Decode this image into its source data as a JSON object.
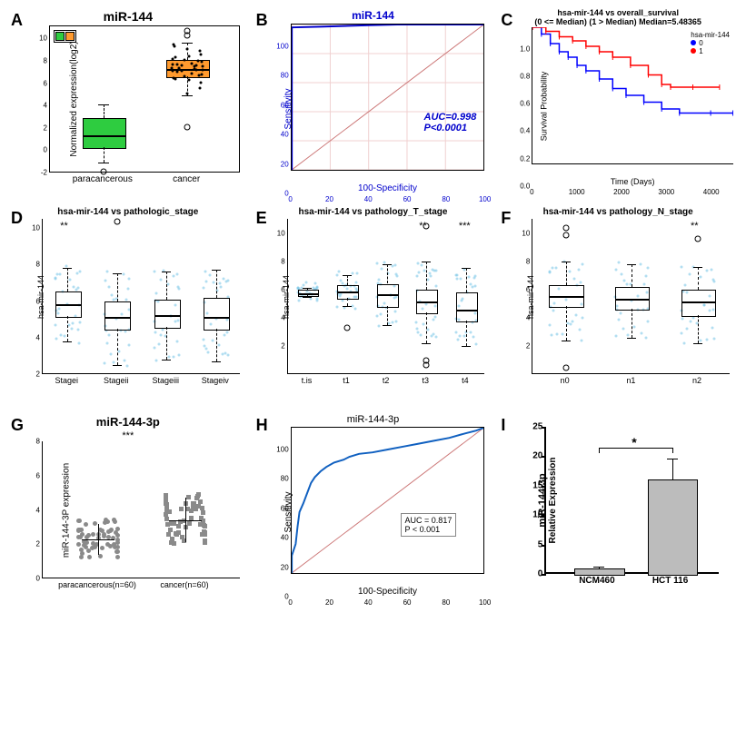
{
  "panelA": {
    "label": "A",
    "title": "miR-144",
    "ylabel": "Normalized expression(log2)",
    "ylim": [
      -2,
      11
    ],
    "yticks": [
      -2,
      0,
      2,
      4,
      6,
      8,
      10
    ],
    "categories": [
      "paracancerous",
      "cancer"
    ],
    "boxes": [
      {
        "q1": 0.2,
        "median": 1.3,
        "q3": 2.8,
        "wlo": -1.2,
        "whi": 4.0,
        "color": "#2ecc40"
      },
      {
        "q1": 6.5,
        "median": 7.3,
        "q3": 8.0,
        "wlo": 4.8,
        "whi": 9.5,
        "color": "#ff9a2e"
      }
    ],
    "legend_colors": [
      "#2ecc40",
      "#ff9a2e"
    ],
    "outliers": [
      {
        "cat": 0,
        "y": -2.0
      },
      {
        "cat": 1,
        "y": 10.6
      },
      {
        "cat": 1,
        "y": 10.2
      },
      {
        "cat": 1,
        "y": 2.0
      }
    ],
    "jitter_cancer": [
      5.0,
      5.5,
      6.0,
      6.2,
      6.3,
      6.4,
      6.5,
      6.6,
      6.7,
      6.8,
      6.9,
      7.0,
      7.0,
      7.1,
      7.1,
      7.2,
      7.2,
      7.3,
      7.3,
      7.4,
      7.4,
      7.5,
      7.5,
      7.6,
      7.6,
      7.7,
      7.8,
      7.9,
      8.0,
      8.1,
      8.2,
      8.3,
      8.5,
      8.8,
      9.0,
      9.2,
      9.4
    ]
  },
  "panelB": {
    "label": "B",
    "title": "miR-144",
    "title_color": "#0000cc",
    "xlabel": "100-Specificity",
    "ylabel": "Sensitivity",
    "xlim": [
      0,
      100
    ],
    "ylim": [
      0,
      100
    ],
    "ticks": [
      0,
      20,
      40,
      60,
      80,
      100
    ],
    "auc_text": "AUC=0.998",
    "p_text": "P<0.0001",
    "label_color": "#0000cc",
    "grid_color": "#f0d0d0",
    "roc_color": "#0000cc",
    "diag_color": "#cc7777",
    "roc_path": [
      [
        0,
        0
      ],
      [
        0,
        98
      ],
      [
        15,
        98.5
      ],
      [
        40,
        99.5
      ],
      [
        55,
        100
      ],
      [
        100,
        100
      ]
    ]
  },
  "panelC": {
    "label": "C",
    "title_line1": "hsa-mir-144 vs overall_survival",
    "title_line2": "(0 <= Median) (1 > Median) Median=5.48365",
    "xlabel": "Time (Days)",
    "ylabel": "Survival Probability",
    "xlim": [
      0,
      4500
    ],
    "ylim": [
      0.0,
      1.0
    ],
    "xticks": [
      0,
      1000,
      2000,
      3000,
      4000
    ],
    "yticks": [
      "0.0",
      "0.2",
      "0.4",
      "0.6",
      "0.8",
      "1.0"
    ],
    "legend_title": "hsa-mir-144",
    "legend_items": [
      {
        "label": "0",
        "color": "#0000ff"
      },
      {
        "label": "1",
        "color": "#ff0000"
      }
    ],
    "curve0_color": "#0000ff",
    "curve1_color": "#ff0000",
    "curve0": [
      [
        0,
        1.0
      ],
      [
        200,
        0.95
      ],
      [
        400,
        0.88
      ],
      [
        600,
        0.82
      ],
      [
        800,
        0.78
      ],
      [
        1000,
        0.72
      ],
      [
        1200,
        0.68
      ],
      [
        1500,
        0.62
      ],
      [
        1800,
        0.55
      ],
      [
        2100,
        0.5
      ],
      [
        2500,
        0.45
      ],
      [
        2900,
        0.4
      ],
      [
        3300,
        0.37
      ],
      [
        4000,
        0.37
      ],
      [
        4500,
        0.37
      ]
    ],
    "curve1": [
      [
        0,
        1.0
      ],
      [
        300,
        0.97
      ],
      [
        600,
        0.93
      ],
      [
        900,
        0.9
      ],
      [
        1200,
        0.86
      ],
      [
        1500,
        0.82
      ],
      [
        1800,
        0.78
      ],
      [
        2200,
        0.72
      ],
      [
        2600,
        0.65
      ],
      [
        2900,
        0.58
      ],
      [
        3100,
        0.56
      ],
      [
        3600,
        0.56
      ],
      [
        4200,
        0.56
      ]
    ]
  },
  "panelD": {
    "label": "D",
    "title": "hsa-mir-144 vs pathologic_stage",
    "ylabel": "hsa-mir-144",
    "ylim": [
      2,
      10.5
    ],
    "yticks": [
      2,
      4,
      6,
      8,
      10
    ],
    "categories": [
      "Stagei",
      "Stageii",
      "Stageiii",
      "Stageiv"
    ],
    "sig": [
      "**",
      "",
      "",
      ""
    ],
    "point_color": "#7fc8e8",
    "boxes": [
      {
        "q1": 5.2,
        "median": 5.9,
        "q3": 6.5,
        "wlo": 3.8,
        "whi": 7.8
      },
      {
        "q1": 4.5,
        "median": 5.2,
        "q3": 6.0,
        "wlo": 2.5,
        "whi": 7.5
      },
      {
        "q1": 4.6,
        "median": 5.3,
        "q3": 6.1,
        "wlo": 2.8,
        "whi": 7.6
      },
      {
        "q1": 4.5,
        "median": 5.2,
        "q3": 6.2,
        "wlo": 2.7,
        "whi": 7.7
      }
    ],
    "outliers": [
      {
        "cat": 1,
        "y": 10.3
      }
    ]
  },
  "panelE": {
    "label": "E",
    "title": "hsa-mir-144 vs pathology_T_stage",
    "ylabel": "hsa-mir-144",
    "ylim": [
      0,
      11
    ],
    "yticks": [
      2,
      4,
      6,
      8,
      10
    ],
    "categories": [
      "t.is",
      "t1",
      "t2",
      "t3",
      "t4"
    ],
    "sig": [
      "",
      "",
      "",
      "**",
      "***"
    ],
    "point_color": "#7fc8e8",
    "boxes": [
      {
        "q1": 5.6,
        "median": 5.8,
        "q3": 6.0,
        "wlo": 5.5,
        "whi": 6.1
      },
      {
        "q1": 5.4,
        "median": 5.9,
        "q3": 6.3,
        "wlo": 4.8,
        "whi": 7.0
      },
      {
        "q1": 4.8,
        "median": 5.7,
        "q3": 6.4,
        "wlo": 3.5,
        "whi": 7.8
      },
      {
        "q1": 4.4,
        "median": 5.2,
        "q3": 6.0,
        "wlo": 2.2,
        "whi": 8.0
      },
      {
        "q1": 3.8,
        "median": 4.6,
        "q3": 5.8,
        "wlo": 2.0,
        "whi": 7.5
      }
    ],
    "outliers": [
      {
        "cat": 1,
        "y": 3.2
      },
      {
        "cat": 3,
        "y": 10.4
      },
      {
        "cat": 3,
        "y": 0.6
      },
      {
        "cat": 3,
        "y": 0.9
      }
    ]
  },
  "panelF": {
    "label": "F",
    "title": "hsa-mir-144 vs pathology_N_stage",
    "ylabel": "hsa-mir-144",
    "ylim": [
      0,
      11
    ],
    "yticks": [
      2,
      4,
      6,
      8,
      10
    ],
    "categories": [
      "n0",
      "n1",
      "n2"
    ],
    "sig": [
      "",
      "",
      "**"
    ],
    "point_color": "#7fc8e8",
    "boxes": [
      {
        "q1": 4.8,
        "median": 5.6,
        "q3": 6.3,
        "wlo": 2.4,
        "whi": 8.0
      },
      {
        "q1": 4.6,
        "median": 5.4,
        "q3": 6.2,
        "wlo": 2.6,
        "whi": 7.8
      },
      {
        "q1": 4.2,
        "median": 5.2,
        "q3": 6.0,
        "wlo": 2.2,
        "whi": 7.6
      }
    ],
    "outliers": [
      {
        "cat": 0,
        "y": 10.3
      },
      {
        "cat": 0,
        "y": 9.8
      },
      {
        "cat": 0,
        "y": 0.4
      },
      {
        "cat": 2,
        "y": 9.5
      }
    ]
  },
  "panelG": {
    "label": "G",
    "title": "miR-144-3p",
    "sig_overall": "***",
    "ylabel": "miR-144-3P expression",
    "ylim": [
      0,
      8
    ],
    "yticks": [
      0,
      2,
      4,
      6,
      8
    ],
    "categories": [
      "paracancerous(n=60)",
      "cancer(n=60)"
    ],
    "marker_shapes": [
      "circle",
      "square"
    ],
    "point_color": "#8a8a8a",
    "means": [
      2.3,
      3.4
    ],
    "sds": [
      0.9,
      1.3
    ]
  },
  "panelH": {
    "label": "H",
    "title": "miR-144-3p",
    "xlabel": "100-Specificity",
    "ylabel": "Sensitivity",
    "xlim": [
      0,
      100
    ],
    "ylim": [
      0,
      100
    ],
    "ticks": [
      0,
      20,
      40,
      60,
      80,
      100
    ],
    "auc_text": "AUC = 0.817",
    "p_text": "P < 0.001",
    "roc_color": "#1060c0",
    "diag_color": "#cc7777",
    "roc_path": [
      [
        0,
        0
      ],
      [
        0,
        12
      ],
      [
        2,
        20
      ],
      [
        3,
        32
      ],
      [
        4,
        42
      ],
      [
        6,
        48
      ],
      [
        8,
        55
      ],
      [
        10,
        62
      ],
      [
        12,
        66
      ],
      [
        15,
        70
      ],
      [
        18,
        73
      ],
      [
        22,
        76
      ],
      [
        27,
        78
      ],
      [
        30,
        80
      ],
      [
        35,
        82
      ],
      [
        42,
        83
      ],
      [
        50,
        85
      ],
      [
        58,
        87
      ],
      [
        66,
        89
      ],
      [
        74,
        91
      ],
      [
        82,
        93
      ],
      [
        90,
        96
      ],
      [
        96,
        98
      ],
      [
        100,
        100
      ]
    ]
  },
  "panelI": {
    "label": "I",
    "ylabel_line1": "miR-144-3p",
    "ylabel_line2": "Relative Expression",
    "ylim": [
      0,
      25
    ],
    "yticks": [
      0,
      5,
      10,
      15,
      20,
      25
    ],
    "categories": [
      "NCM460",
      "HCT 116"
    ],
    "values": [
      1.0,
      16.0
    ],
    "errors": [
      0.2,
      3.6
    ],
    "bar_colors": [
      "#bcbcbc",
      "#bcbcbc"
    ],
    "sig": "*"
  }
}
